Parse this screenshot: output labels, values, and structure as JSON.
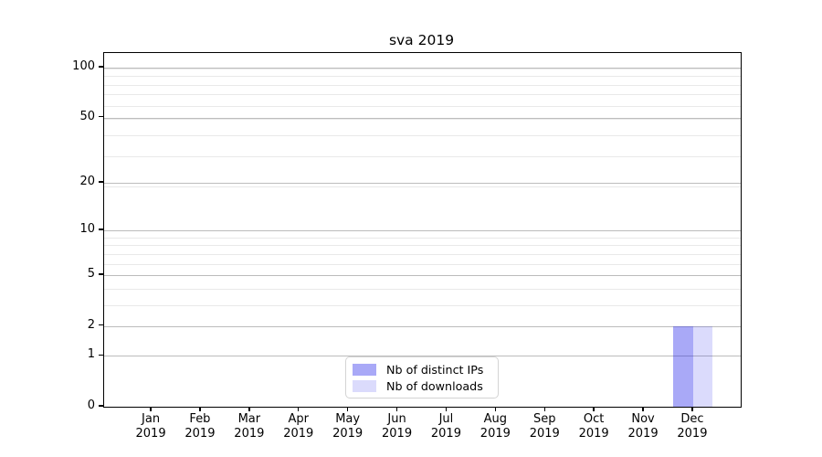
{
  "chart_data": {
    "type": "bar",
    "title": "sva 2019",
    "categories": [
      "Jan 2019",
      "Feb 2019",
      "Mar 2019",
      "Apr 2019",
      "May 2019",
      "Jun 2019",
      "Jul 2019",
      "Aug 2019",
      "Sep 2019",
      "Oct 2019",
      "Nov 2019",
      "Dec 2019"
    ],
    "series": [
      {
        "name": "Nb of distinct IPs",
        "color": "rgba(30,30,235,0.38)",
        "values": [
          0,
          0,
          0,
          0,
          0,
          0,
          0,
          0,
          0,
          0,
          0,
          2
        ]
      },
      {
        "name": "Nb of downloads",
        "color": "rgba(30,30,235,0.16)",
        "values": [
          0,
          0,
          0,
          0,
          0,
          0,
          0,
          0,
          0,
          0,
          0,
          2
        ]
      }
    ],
    "xlabel": "",
    "ylabel": "",
    "yscale": "log1p",
    "ylim": [
      0,
      122
    ],
    "y_ticks": [
      0,
      1,
      2,
      5,
      10,
      20,
      50,
      100
    ],
    "y_minor_ticks": [
      3,
      4,
      6,
      7,
      8,
      9,
      19,
      29,
      39,
      49,
      59,
      69,
      79,
      89,
      99
    ],
    "grid": "horizontal",
    "legend": {
      "position": "bottom-center",
      "entries": [
        "Nb of distinct IPs",
        "Nb of downloads"
      ]
    },
    "colors": {
      "major_grid": "#bcbcbc",
      "minor_grid": "#e9e9e9",
      "spine": "#000000",
      "background": "#ffffff"
    }
  }
}
